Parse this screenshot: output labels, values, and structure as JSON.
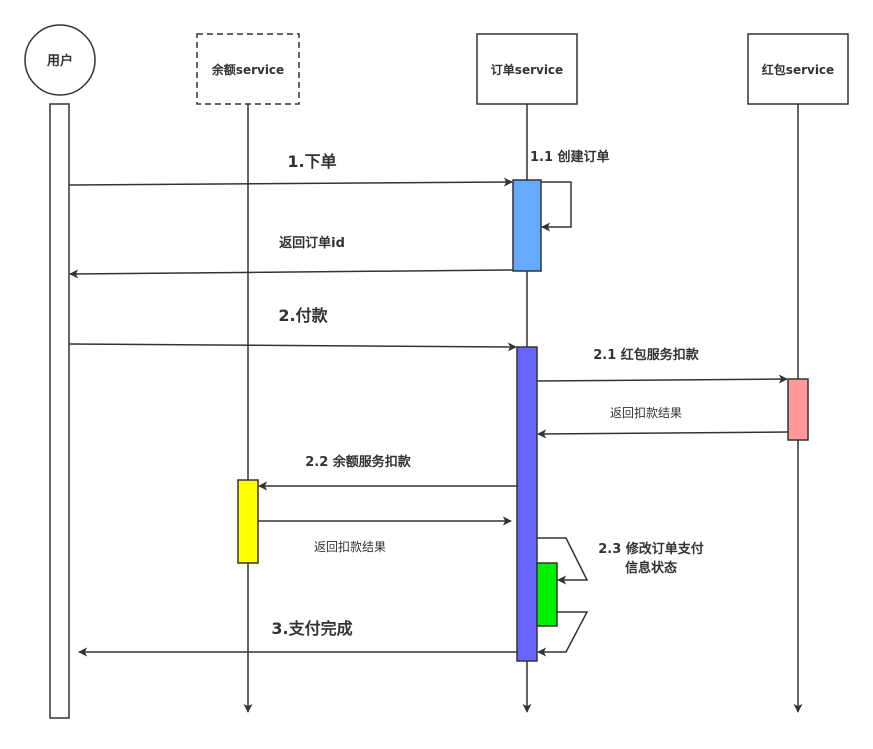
{
  "participants": {
    "user": "用户",
    "balance": "余额service",
    "order": "订单service",
    "redpacket": "红包service"
  },
  "messages": {
    "m1": "1.下单",
    "m1_1": "1.1 创建订单",
    "m1_ret": "返回订单id",
    "m2": "2.付款",
    "m2_1": "2.1 红包服务扣款",
    "m2_1_ret": "返回扣款结果",
    "m2_2": "2.2 余额服务扣款",
    "m2_2_ret": "返回扣款结果",
    "m2_3_line1": "2.3 修改订单支付",
    "m2_3_line2": "信息状态",
    "m3": "3.支付完成"
  },
  "colors": {
    "stroke": "#333333",
    "activation_order_1": "#66aaff",
    "activation_order_2": "#6666ff",
    "activation_redpacket": "#ff9999",
    "activation_balance": "#ffff00",
    "activation_self": "#00ee00"
  }
}
